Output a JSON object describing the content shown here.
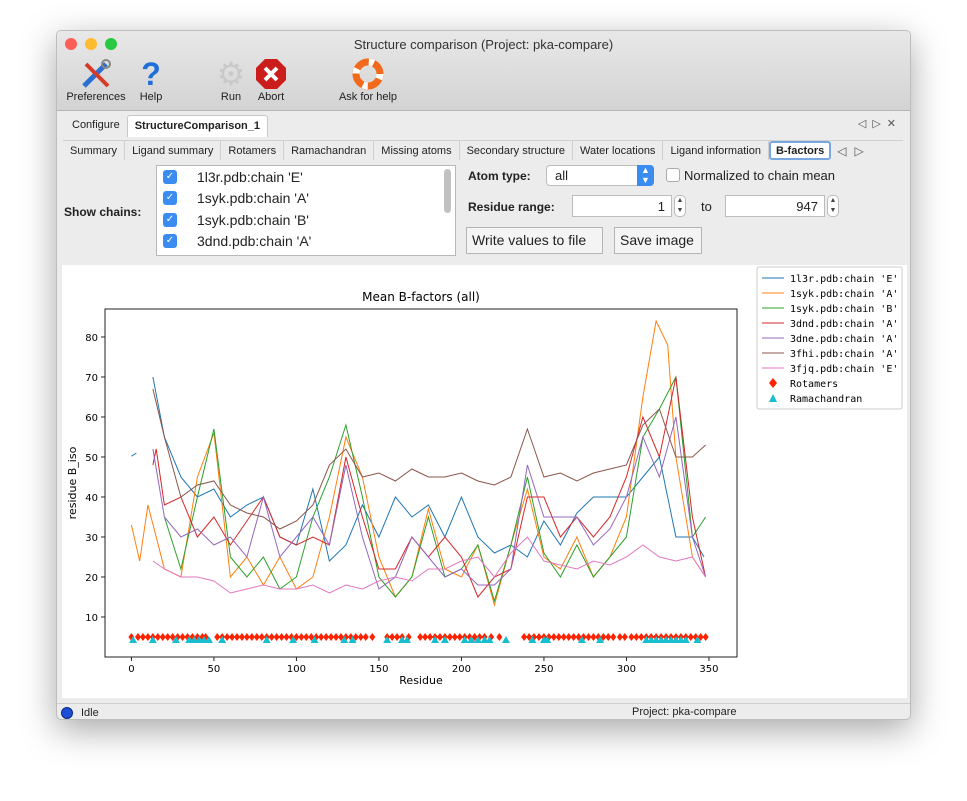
{
  "window": {
    "title": "Structure comparison (Project: pka-compare)"
  },
  "toolbar": [
    {
      "label": "Preferences",
      "icon": "preferences-tools-icon"
    },
    {
      "label": "Help",
      "icon": "help-question-icon"
    },
    {
      "label": "Run",
      "icon": "gear-icon"
    },
    {
      "label": "Abort",
      "icon": "abort-stop-icon"
    },
    {
      "label": "Ask for help",
      "icon": "lifebuoy-icon"
    }
  ],
  "tabs": [
    {
      "label": "Configure"
    },
    {
      "label": "StructureComparison_1",
      "selected": true
    }
  ],
  "subtabs": [
    {
      "label": "Summary"
    },
    {
      "label": "Ligand summary"
    },
    {
      "label": "Rotamers"
    },
    {
      "label": "Ramachandran"
    },
    {
      "label": "Missing atoms"
    },
    {
      "label": "Secondary structure"
    },
    {
      "label": "Water locations"
    },
    {
      "label": "Ligand information"
    },
    {
      "label": "B-factors",
      "selected": true
    }
  ],
  "controls": {
    "show_chains_label": "Show chains:",
    "chains": [
      {
        "label": "1l3r.pdb:chain 'E'",
        "checked": true
      },
      {
        "label": "1syk.pdb:chain 'A'",
        "checked": true
      },
      {
        "label": "1syk.pdb:chain 'B'",
        "checked": true
      },
      {
        "label": "3dnd.pdb:chain 'A'",
        "checked": true
      }
    ],
    "atom_type_label": "Atom type:",
    "atom_type_value": "all",
    "normalized_label": "Normalized to chain mean",
    "normalized_checked": false,
    "residue_range_label": "Residue range:",
    "range_from": "1",
    "range_to_label": "to",
    "range_to": "947",
    "write_button": "Write values to file",
    "save_button": "Save image"
  },
  "status": {
    "text": "Idle",
    "project": "Project: pka-compare",
    "indicator_color": "#1d4ed8"
  },
  "chart_data": {
    "type": "line",
    "title": "Mean B-factors (all)",
    "xlabel": "Residue",
    "ylabel": "residue B_iso",
    "xlim": [
      -16,
      367
    ],
    "ylim": [
      0,
      87
    ],
    "xticks": [
      0,
      50,
      100,
      150,
      200,
      250,
      300,
      350
    ],
    "yticks": [
      10,
      20,
      30,
      40,
      50,
      60,
      70,
      80
    ],
    "grid": false,
    "legend_placement": "outside-right",
    "series": [
      {
        "name": "1l3r.pdb:chain 'E'",
        "color": "#1f77b4",
        "x": [
          0,
          3,
          null,
          13,
          20,
          30,
          40,
          50,
          60,
          70,
          80,
          90,
          100,
          110,
          120,
          130,
          140,
          150,
          160,
          170,
          180,
          190,
          200,
          210,
          220,
          230,
          240,
          250,
          260,
          270,
          280,
          290,
          300,
          310,
          320,
          330,
          340,
          347
        ],
        "y": [
          50.2,
          51,
          null,
          70,
          55,
          45,
          40,
          42,
          35,
          38,
          40,
          30,
          28,
          42,
          24,
          28,
          38,
          30,
          40,
          35,
          38,
          30,
          40,
          30,
          26,
          28,
          25,
          34,
          28,
          36,
          40,
          40,
          40,
          45,
          50,
          30,
          30,
          25
        ]
      },
      {
        "name": "1syk.pdb:chain 'A'",
        "color": "#ff7f0e",
        "x": [
          0,
          5,
          10,
          15,
          20,
          30,
          40,
          50,
          60,
          70,
          80,
          90,
          100,
          110,
          120,
          130,
          140,
          150,
          160,
          170,
          180,
          190,
          200,
          210,
          220,
          230,
          240,
          250,
          260,
          270,
          280,
          290,
          300,
          310,
          318,
          325,
          330,
          340,
          348
        ],
        "y": [
          33,
          24,
          38,
          30,
          22,
          20,
          45,
          56,
          20,
          25,
          18,
          25,
          17,
          20,
          35,
          55,
          45,
          25,
          15,
          20,
          37,
          22,
          20,
          28,
          13,
          28,
          42,
          25,
          22,
          30,
          20,
          25,
          35,
          65,
          84,
          78,
          50,
          25,
          20
        ]
      },
      {
        "name": "1syk.pdb:chain 'B'",
        "color": "#2ca02c",
        "x": [
          20,
          30,
          40,
          50,
          60,
          70,
          80,
          90,
          100,
          110,
          120,
          130,
          140,
          150,
          160,
          170,
          180,
          190,
          200,
          210,
          220,
          230,
          240,
          250,
          260,
          270,
          280,
          290,
          300,
          310,
          320,
          330,
          340,
          348
        ],
        "y": [
          35,
          22,
          40,
          57,
          25,
          20,
          25,
          17,
          20,
          35,
          45,
          58,
          40,
          20,
          15,
          20,
          35,
          20,
          22,
          28,
          14,
          28,
          45,
          26,
          20,
          28,
          20,
          25,
          30,
          55,
          62,
          70,
          30,
          35
        ]
      },
      {
        "name": "3dnd.pdb:chain 'A'",
        "color": "#d62728",
        "x": [
          13,
          15,
          20,
          30,
          40,
          50,
          60,
          70,
          80,
          90,
          100,
          110,
          120,
          130,
          140,
          150,
          160,
          170,
          180,
          190,
          200,
          210,
          220,
          230,
          240,
          250,
          260,
          270,
          280,
          290,
          300,
          310,
          320,
          330,
          340,
          348
        ],
        "y": [
          48,
          52,
          38,
          40,
          30,
          35,
          28,
          34,
          40,
          30,
          28,
          30,
          28,
          50,
          35,
          22,
          22,
          30,
          25,
          30,
          25,
          15,
          20,
          22,
          40,
          40,
          30,
          35,
          30,
          35,
          45,
          60,
          50,
          70,
          35,
          20
        ]
      },
      {
        "name": "3dne.pdb:chain 'A'",
        "color": "#9467bd",
        "x": [
          13,
          20,
          30,
          40,
          50,
          60,
          70,
          80,
          90,
          100,
          110,
          120,
          130,
          140,
          150,
          160,
          170,
          180,
          190,
          200,
          210,
          220,
          230,
          240,
          250,
          260,
          270,
          280,
          290,
          300,
          310,
          320,
          330,
          340,
          348
        ],
        "y": [
          52,
          35,
          30,
          32,
          28,
          30,
          25,
          40,
          25,
          30,
          35,
          28,
          48,
          30,
          17,
          20,
          30,
          25,
          20,
          22,
          18,
          18,
          22,
          48,
          35,
          35,
          35,
          28,
          32,
          40,
          55,
          45,
          60,
          30,
          20
        ]
      },
      {
        "name": "3fhi.pdb:chain 'A'",
        "color": "#8c564b",
        "x": [
          13,
          20,
          30,
          40,
          50,
          60,
          70,
          80,
          90,
          100,
          110,
          120,
          130,
          140,
          150,
          160,
          170,
          180,
          190,
          200,
          210,
          220,
          230,
          240,
          250,
          260,
          270,
          280,
          290,
          300,
          310,
          320,
          330,
          340,
          348
        ],
        "y": [
          67,
          55,
          40,
          43,
          44,
          38,
          36,
          35,
          32,
          34,
          38,
          48,
          52,
          45,
          46,
          44,
          47,
          45,
          45,
          46,
          44,
          43,
          45,
          57,
          45,
          46,
          44,
          46,
          47,
          48,
          58,
          62,
          50,
          50,
          53
        ]
      },
      {
        "name": "3fjq.pdb:chain 'E'",
        "color": "#e377c2",
        "x": [
          13,
          20,
          30,
          40,
          50,
          60,
          70,
          80,
          90,
          100,
          110,
          120,
          130,
          140,
          150,
          160,
          170,
          180,
          190,
          200,
          210,
          220,
          230,
          240,
          250,
          260,
          270,
          280,
          290,
          300,
          310,
          320,
          330,
          340,
          348
        ],
        "y": [
          24,
          22,
          20,
          20,
          19,
          16,
          17,
          18,
          17,
          17,
          18,
          16,
          18,
          17,
          19,
          20,
          19,
          22,
          22,
          24,
          25,
          20,
          26,
          30,
          24,
          23,
          22,
          24,
          23,
          25,
          28,
          25,
          24,
          25,
          20
        ]
      }
    ],
    "markers": [
      {
        "name": "Rotamers",
        "color": "#ff2200",
        "shape": "diamond",
        "y": 5,
        "x": [
          0,
          4,
          7,
          10,
          13,
          16,
          19,
          22,
          25,
          28,
          31,
          34,
          37,
          40,
          43,
          45,
          52,
          55,
          58,
          61,
          64,
          67,
          70,
          73,
          76,
          79,
          82,
          85,
          88,
          91,
          94,
          97,
          100,
          103,
          106,
          109,
          112,
          115,
          118,
          121,
          124,
          127,
          130,
          133,
          136,
          139,
          142,
          146,
          155,
          158,
          161,
          164,
          168,
          175,
          178,
          181,
          184,
          187,
          190,
          193,
          196,
          199,
          202,
          205,
          208,
          211,
          214,
          218,
          223,
          238,
          241,
          244,
          247,
          250,
          253,
          256,
          259,
          262,
          265,
          268,
          271,
          274,
          277,
          280,
          283,
          286,
          289,
          292,
          296,
          299,
          303,
          306,
          309,
          312,
          315,
          318,
          321,
          324,
          327,
          330,
          333,
          336,
          339,
          342,
          345,
          348
        ]
      },
      {
        "name": "Ramachandran",
        "color": "#17becf",
        "shape": "triangle",
        "y": 4.5,
        "x": [
          1,
          13,
          27,
          35,
          38,
          41,
          44,
          47,
          55,
          82,
          98,
          111,
          129,
          134,
          155,
          164,
          167,
          184,
          190,
          202,
          206,
          210,
          214,
          217,
          227,
          243,
          250,
          252,
          273,
          284,
          312,
          315,
          318,
          321,
          324,
          327,
          330,
          333,
          336,
          343
        ]
      }
    ]
  }
}
